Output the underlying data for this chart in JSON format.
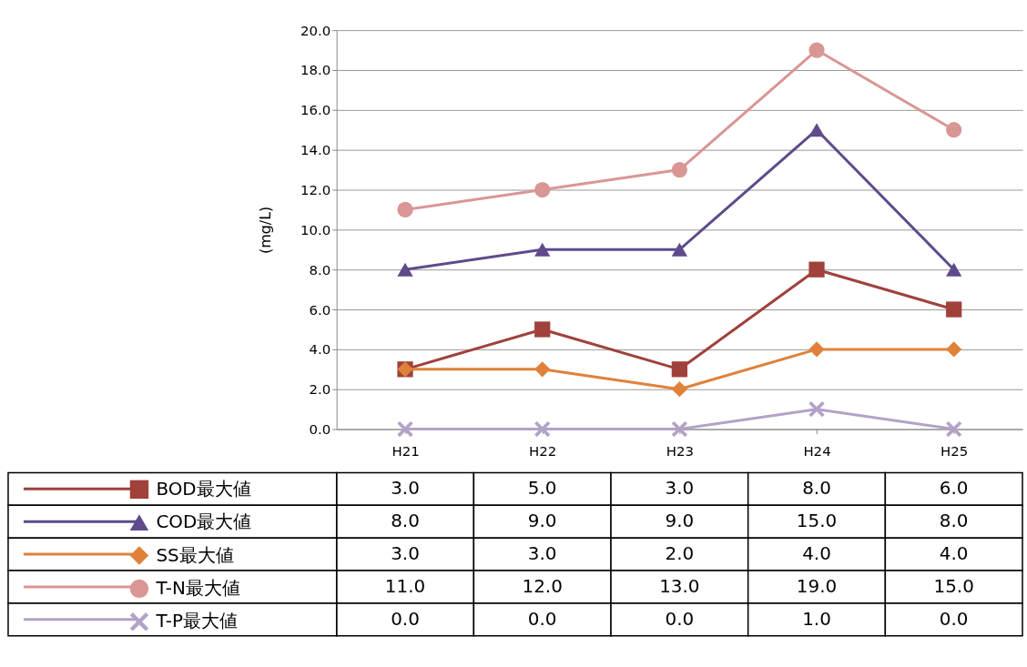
{
  "chart_data": {
    "type": "line",
    "ylabel": "(mg/L)",
    "categories": [
      "H21",
      "H22",
      "H23",
      "H24",
      "H25"
    ],
    "ylim": [
      0,
      20
    ],
    "yticks": [
      {
        "value": 0,
        "label": "0.0"
      },
      {
        "value": 2,
        "label": "2.0"
      },
      {
        "value": 4,
        "label": "4.0"
      },
      {
        "value": 6,
        "label": "6.0"
      },
      {
        "value": 8,
        "label": "8.0"
      },
      {
        "value": 10,
        "label": "10.0"
      },
      {
        "value": 12,
        "label": "12.0"
      },
      {
        "value": 14,
        "label": "14.0"
      },
      {
        "value": 16,
        "label": "16.0"
      },
      {
        "value": 18,
        "label": "18.0"
      },
      {
        "value": 20,
        "label": "20.0"
      }
    ],
    "grid": "y",
    "legend": "bottom",
    "series": [
      {
        "name": "BOD最大値",
        "color": "#a0413c",
        "marker": "square",
        "values": [
          3,
          5,
          3,
          8,
          6
        ],
        "value_labels": [
          "3.0",
          "5.0",
          "3.0",
          "8.0",
          "6.0"
        ]
      },
      {
        "name": "COD最大値",
        "color": "#5f4a8b",
        "marker": "triangle",
        "values": [
          8,
          9,
          9,
          15,
          8
        ],
        "value_labels": [
          "8.0",
          "9.0",
          "9.0",
          "15.0",
          "8.0"
        ]
      },
      {
        "name": "SS最大値",
        "color": "#e0813a",
        "marker": "diamond",
        "values": [
          3,
          3,
          2,
          4,
          4
        ],
        "value_labels": [
          "3.0",
          "3.0",
          "2.0",
          "4.0",
          "4.0"
        ]
      },
      {
        "name": "T-N最大値",
        "color": "#d99694",
        "marker": "circle",
        "values": [
          11,
          12,
          13,
          19,
          15
        ],
        "value_labels": [
          "11.0",
          "12.0",
          "13.0",
          "19.0",
          "15.0"
        ]
      },
      {
        "name": "T-P最大値",
        "color": "#b3a2c7",
        "marker": "cross",
        "values": [
          0,
          0,
          0,
          1,
          0
        ],
        "value_labels": [
          "0.0",
          "0.0",
          "0.0",
          "1.0",
          "0.0"
        ]
      }
    ]
  }
}
